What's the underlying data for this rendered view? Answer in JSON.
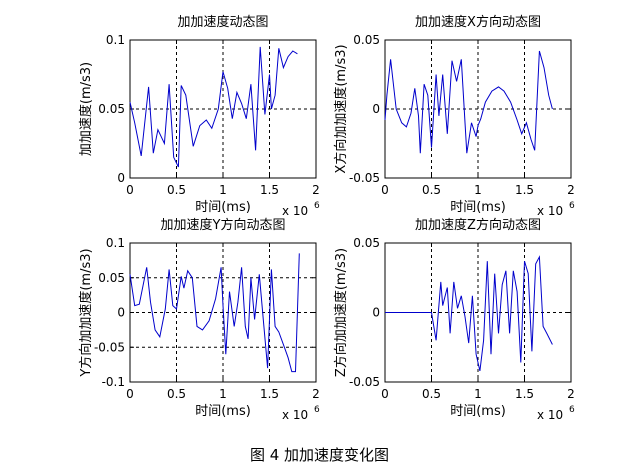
{
  "caption": "图 4  加加速度变化图",
  "series_color": "#0000cc",
  "chart_data": [
    {
      "type": "line",
      "title": "加加速度动态图",
      "xlabel": "时间(ms)",
      "ylabel": "加加速度(m/s3)",
      "x_exponent_label": "x 10",
      "x_exponent": "6",
      "xlim": [
        0,
        2
      ],
      "ylim": [
        0,
        0.1
      ],
      "xticks": [
        0,
        0.5,
        1,
        1.5,
        2
      ],
      "xtick_labels": [
        "0",
        "0.5",
        "1",
        "1.5",
        "2"
      ],
      "yticks": [
        0,
        0.05,
        0.1
      ],
      "ytick_labels": [
        "0",
        "0.05",
        "0.1"
      ],
      "grid_v": [
        0.5,
        1,
        1.5
      ],
      "grid_h": [
        0.05
      ],
      "series": [
        {
          "x": [
            0,
            0.05,
            0.12,
            0.2,
            0.25,
            0.3,
            0.37,
            0.42,
            0.47,
            0.52,
            0.55,
            0.6,
            0.68,
            0.75,
            0.82,
            0.88,
            0.95,
            1.0,
            1.05,
            1.1,
            1.15,
            1.2,
            1.25,
            1.3,
            1.35,
            1.4,
            1.45,
            1.5,
            1.52,
            1.56,
            1.6,
            1.65,
            1.7,
            1.75,
            1.8
          ],
          "y": [
            0.055,
            0.04,
            0.016,
            0.066,
            0.018,
            0.035,
            0.025,
            0.068,
            0.015,
            0.008,
            0.067,
            0.06,
            0.023,
            0.038,
            0.042,
            0.036,
            0.05,
            0.077,
            0.065,
            0.043,
            0.062,
            0.054,
            0.043,
            0.068,
            0.02,
            0.095,
            0.046,
            0.075,
            0.05,
            0.06,
            0.094,
            0.08,
            0.088,
            0.092,
            0.09
          ]
        }
      ]
    },
    {
      "type": "line",
      "title": "加加速度X方向动态图",
      "xlabel": "时间(ms)",
      "ylabel": "X方向加加速度(m/s3)",
      "x_exponent_label": "x 10",
      "x_exponent": "6",
      "xlim": [
        0,
        2
      ],
      "ylim": [
        -0.05,
        0.05
      ],
      "xticks": [
        0,
        0.5,
        1,
        1.5,
        2
      ],
      "xtick_labels": [
        "0",
        "0.5",
        "1",
        "1.5",
        "2"
      ],
      "yticks": [
        -0.05,
        0,
        0.05
      ],
      "ytick_labels": [
        "-0.05",
        "0",
        "0.05"
      ],
      "grid_v": [
        0.5,
        1,
        1.5
      ],
      "grid_h": [
        0
      ],
      "series": [
        {
          "x": [
            0,
            0.02,
            0.06,
            0.12,
            0.18,
            0.23,
            0.28,
            0.32,
            0.36,
            0.38,
            0.42,
            0.46,
            0.5,
            0.55,
            0.58,
            0.62,
            0.67,
            0.72,
            0.77,
            0.82,
            0.88,
            0.93,
            0.98,
            1.0,
            1.03,
            1.08,
            1.15,
            1.22,
            1.28,
            1.35,
            1.42,
            1.47,
            1.52,
            1.57,
            1.61,
            1.66,
            1.71,
            1.76,
            1.8
          ],
          "y": [
            -0.008,
            0.01,
            0.036,
            0.0,
            -0.01,
            -0.013,
            -0.003,
            0.015,
            -0.005,
            -0.032,
            0.018,
            0.01,
            -0.028,
            0.025,
            -0.005,
            0.025,
            -0.018,
            0.035,
            0.02,
            0.036,
            -0.032,
            -0.01,
            -0.02,
            -0.012,
            -0.007,
            0.005,
            0.013,
            0.016,
            0.013,
            0.005,
            -0.008,
            -0.018,
            -0.01,
            -0.022,
            -0.03,
            0.042,
            0.03,
            0.01,
            0.0
          ]
        }
      ]
    },
    {
      "type": "line",
      "title": "加加速度Y方向动态图",
      "xlabel": "时间(ms)",
      "ylabel": "Y方向加加速度(m/s3)",
      "x_exponent_label": "x 10",
      "x_exponent": "6",
      "xlim": [
        0,
        2
      ],
      "ylim": [
        -0.1,
        0.1
      ],
      "xticks": [
        0,
        0.5,
        1,
        1.5,
        2
      ],
      "xtick_labels": [
        "0",
        "0.5",
        "1",
        "1.5",
        "2"
      ],
      "yticks": [
        -0.1,
        -0.05,
        0,
        0.05,
        0.1
      ],
      "ytick_labels": [
        "-0.1",
        "-0.05",
        "0",
        "0.05",
        "0.1"
      ],
      "grid_v": [
        0.5,
        1,
        1.5
      ],
      "grid_h": [
        0.05,
        0,
        -0.05
      ],
      "series": [
        {
          "x": [
            0,
            0.05,
            0.1,
            0.18,
            0.22,
            0.27,
            0.32,
            0.38,
            0.42,
            0.46,
            0.5,
            0.55,
            0.58,
            0.62,
            0.67,
            0.72,
            0.78,
            0.85,
            0.92,
            0.98,
            1.0,
            1.03,
            1.07,
            1.12,
            1.16,
            1.2,
            1.24,
            1.27,
            1.3,
            1.34,
            1.39,
            1.44,
            1.48,
            1.52,
            1.56,
            1.6,
            1.66,
            1.7,
            1.74,
            1.78,
            1.82
          ],
          "y": [
            0.055,
            0.01,
            0.012,
            0.065,
            0.015,
            -0.025,
            -0.035,
            0.005,
            0.062,
            0.01,
            0.005,
            0.052,
            0.035,
            0.06,
            0.05,
            -0.02,
            -0.025,
            -0.012,
            0.02,
            0.065,
            0.01,
            -0.06,
            0.03,
            -0.02,
            0.015,
            0.065,
            -0.02,
            -0.038,
            0.05,
            -0.01,
            0.055,
            -0.02,
            -0.08,
            0.062,
            -0.02,
            -0.028,
            -0.05,
            -0.065,
            -0.085,
            -0.085,
            0.085
          ]
        }
      ]
    },
    {
      "type": "line",
      "title": "加加速度Z方向动态图",
      "xlabel": "时间(ms)",
      "ylabel": "Z方向加加速度(m/s3)",
      "x_exponent_label": "x 10",
      "x_exponent": "6",
      "xlim": [
        0,
        2
      ],
      "ylim": [
        -0.05,
        0.05
      ],
      "xticks": [
        0,
        0.5,
        1,
        1.5,
        2
      ],
      "xtick_labels": [
        "0",
        "0.5",
        "1",
        "1.5",
        "2"
      ],
      "yticks": [
        -0.05,
        0,
        0.05
      ],
      "ytick_labels": [
        "-0.05",
        "0",
        "0.05"
      ],
      "grid_v": [
        0.5,
        1,
        1.5
      ],
      "grid_h": [
        0
      ],
      "series": [
        {
          "x": [
            0,
            0.4,
            0.5,
            0.55,
            0.6,
            0.62,
            0.67,
            0.7,
            0.74,
            0.78,
            0.82,
            0.86,
            0.9,
            0.94,
            0.98,
            1.02,
            1.06,
            1.1,
            1.14,
            1.18,
            1.22,
            1.26,
            1.3,
            1.34,
            1.38,
            1.42,
            1.46,
            1.5,
            1.54,
            1.58,
            1.62,
            1.66,
            1.7,
            1.74,
            1.8
          ],
          "y": [
            0,
            0,
            0,
            -0.02,
            0.022,
            0.005,
            0.018,
            -0.015,
            0.022,
            0.003,
            0.012,
            -0.003,
            -0.022,
            0.012,
            -0.03,
            -0.042,
            -0.02,
            0.037,
            -0.03,
            0.028,
            -0.015,
            0.02,
            0.03,
            -0.015,
            0.03,
            0.015,
            -0.036,
            0.037,
            0.028,
            -0.028,
            0.035,
            0.04,
            -0.01,
            -0.015,
            -0.023
          ]
        }
      ]
    }
  ]
}
